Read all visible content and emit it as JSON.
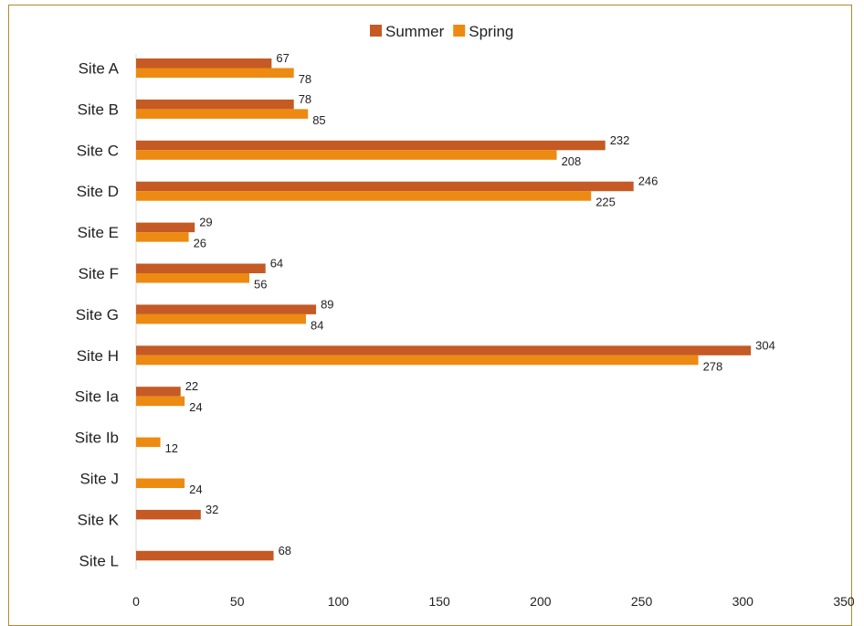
{
  "chart_data": {
    "type": "bar",
    "orientation": "horizontal",
    "title": "",
    "xlabel": "",
    "ylabel": "",
    "categories": [
      "Site A",
      "Site B",
      "Site C",
      "Site D",
      "Site E",
      "Site F",
      "Site G",
      "Site H",
      "Site Ia",
      "Site Ib",
      "Site J",
      "Site K",
      "Site L"
    ],
    "series": [
      {
        "name": "Summer",
        "color": "#c55a24",
        "values": [
          67,
          78,
          232,
          246,
          29,
          64,
          89,
          304,
          22,
          null,
          null,
          32,
          68
        ]
      },
      {
        "name": "Spring",
        "color": "#ed8a12",
        "values": [
          78,
          85,
          208,
          225,
          26,
          56,
          84,
          278,
          24,
          12,
          24,
          null,
          null
        ]
      }
    ],
    "xlim": [
      0,
      350
    ],
    "xticks": [
      0,
      50,
      100,
      150,
      200,
      250,
      300,
      350
    ],
    "grid": false,
    "legend_position": "top"
  }
}
